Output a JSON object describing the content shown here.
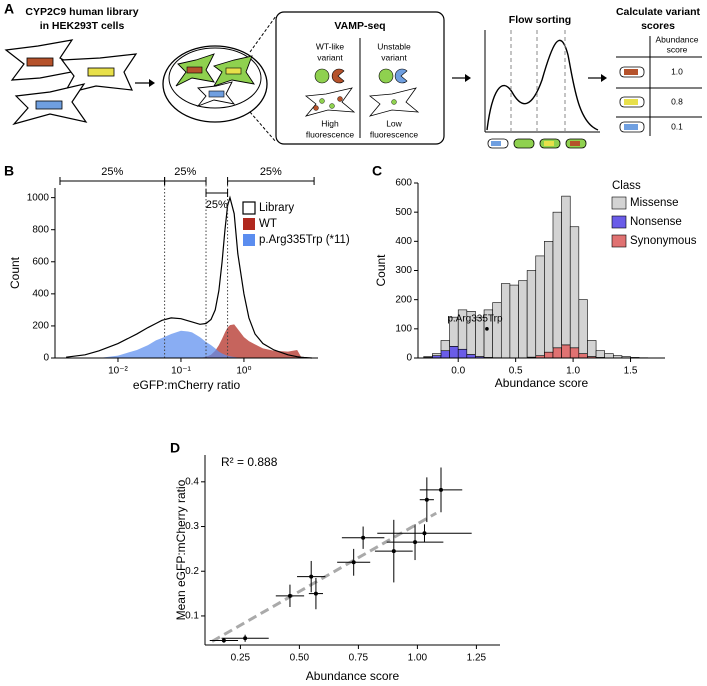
{
  "diagram": {
    "panel": "A",
    "library_title": [
      "CYP2C9 human library",
      "in HEK293T cells"
    ],
    "vamp_title": "VAMP-seq",
    "wt_label": [
      "WT-like",
      "variant"
    ],
    "unstable_label": [
      "Unstable",
      "variant"
    ],
    "high_label": [
      "High",
      "fluorescence"
    ],
    "low_label": [
      "Low",
      "fluorescence"
    ],
    "flow_title": "Flow sorting",
    "scores_title": [
      "Calculate variant",
      "scores"
    ],
    "score_header": [
      "Abundance",
      "score"
    ],
    "scores": [
      "1.0",
      "0.8",
      "0.1"
    ]
  },
  "chart_data": [
    {
      "panel": "B",
      "type": "area",
      "xlabel": "eGFP:mCherry ratio",
      "ylabel": "Count",
      "xscale": "log",
      "x": [
        0.0015,
        0.003,
        0.005,
        0.01,
        0.02,
        0.03,
        0.04,
        0.05,
        0.07,
        0.1,
        0.13,
        0.15,
        0.2,
        0.25,
        0.3,
        0.35,
        0.4,
        0.45,
        0.5,
        0.55,
        0.6,
        0.7,
        0.8,
        1,
        1.2,
        1.5,
        2,
        3,
        5,
        7,
        8,
        9,
        12
      ],
      "series": [
        {
          "name": "Library",
          "color": "#ffffff",
          "edgecolor": "#000000",
          "values": [
            5,
            20,
            45,
            90,
            150,
            190,
            215,
            235,
            250,
            245,
            232,
            225,
            210,
            215,
            240,
            300,
            420,
            600,
            800,
            950,
            1000,
            900,
            650,
            400,
            250,
            150,
            90,
            50,
            20,
            8,
            5,
            3,
            0
          ]
        },
        {
          "name": "WT",
          "color": "#b0281e",
          "values": [
            0,
            0,
            0,
            0,
            0,
            0,
            0,
            0,
            0,
            0,
            0,
            0,
            0,
            8,
            20,
            45,
            80,
            120,
            160,
            190,
            205,
            210,
            180,
            130,
            105,
            85,
            60,
            45,
            40,
            50,
            10,
            0,
            0
          ]
        },
        {
          "name": "p.Arg335Trp (*11)",
          "color": "#5b8def",
          "values": [
            0,
            0,
            0,
            15,
            50,
            80,
            110,
            125,
            150,
            170,
            165,
            160,
            130,
            100,
            80,
            60,
            40,
            28,
            20,
            14,
            10,
            6,
            3,
            0,
            0,
            0,
            0,
            0,
            0,
            0,
            0,
            0,
            0
          ]
        }
      ],
      "xlim": [
        0.001,
        15
      ],
      "ylim": [
        0,
        1060
      ],
      "xticks": [
        {
          "value": 0.01,
          "label": "10⁻²"
        },
        {
          "value": 0.1,
          "label": "10⁻¹"
        },
        {
          "value": 1,
          "label": "10⁰"
        }
      ],
      "yticks": [
        0,
        200,
        400,
        600,
        800,
        1000
      ],
      "quartile_lines": [
        0.055,
        0.25,
        0.55
      ],
      "brackets": [
        {
          "x": [
            0.0012,
            0.055
          ],
          "label": "25%"
        },
        {
          "x": [
            0.055,
            0.25
          ],
          "label": "25%"
        },
        {
          "x": [
            0.25,
            0.55
          ],
          "label": "25%"
        },
        {
          "x": [
            0.55,
            13
          ],
          "label": "25%"
        }
      ],
      "legend": "upper right"
    },
    {
      "panel": "C",
      "type": "histogram",
      "stacked": true,
      "xlabel": "Abundance score",
      "ylabel": "Count",
      "legend_title": "Class",
      "bins": [
        -0.3,
        -0.225,
        -0.15,
        -0.075,
        0,
        0.075,
        0.15,
        0.225,
        0.3,
        0.375,
        0.45,
        0.525,
        0.6,
        0.675,
        0.75,
        0.825,
        0.9,
        0.975,
        1.05,
        1.125,
        1.2,
        1.275,
        1.35,
        1.425,
        1.5,
        1.575,
        1.65
      ],
      "series": [
        {
          "name": "Missense",
          "color": "#d3d3d3",
          "values": [
            3,
            7,
            35,
            100,
            135,
            148,
            135,
            163,
            189,
            255,
            250,
            265,
            297,
            342,
            380,
            465,
            510,
            415,
            185,
            55,
            23,
            15,
            8,
            5,
            2,
            1
          ]
        },
        {
          "name": "Nonsense",
          "color": "#6a5ce8",
          "values": [
            2,
            8,
            25,
            40,
            30,
            12,
            5,
            2,
            1,
            0,
            0,
            0,
            0,
            0,
            0,
            0,
            0,
            0,
            0,
            0,
            0,
            0,
            0,
            0,
            0,
            0
          ]
        },
        {
          "name": "Synonymous",
          "color": "#e07272",
          "values": [
            0,
            0,
            0,
            0,
            0,
            0,
            0,
            0,
            0,
            0,
            0,
            0,
            3,
            8,
            20,
            35,
            45,
            35,
            15,
            5,
            2,
            0,
            0,
            0,
            0,
            0
          ]
        }
      ],
      "xlim": [
        -0.35,
        1.8
      ],
      "ylim": [
        0,
        600
      ],
      "xticks": [
        {
          "value": 0,
          "label": "0.0"
        },
        0.5,
        {
          "value": 1,
          "label": "1.0"
        },
        1.5
      ],
      "yticks": [
        0,
        100,
        200,
        300,
        400,
        500,
        600
      ],
      "annotation": {
        "x": 0.25,
        "y": 100,
        "label": "p.Arg335Trp"
      },
      "legend": "upper right"
    },
    {
      "panel": "D",
      "type": "scatter",
      "xlabel": "Abundance score",
      "ylabel": "Mean eGFP:mCherry ratio",
      "annotation": "R² = 0.888",
      "series": [
        {
          "color": "#000000",
          "x": [
            0.18,
            0.27,
            0.46,
            0.55,
            0.57,
            0.73,
            0.77,
            0.9,
            0.99,
            1.03,
            1.04,
            1.1
          ],
          "values": [
            0.045,
            0.05,
            0.145,
            0.188,
            0.15,
            0.22,
            0.275,
            0.245,
            0.265,
            0.285,
            0.36,
            0.382
          ],
          "xerr": [
            0.06,
            0.1,
            0.06,
            0.06,
            0.03,
            0.07,
            0.09,
            0.08,
            0.12,
            0.2,
            0.03,
            0.09
          ],
          "yerr": [
            0.005,
            0.008,
            0.025,
            0.035,
            0.035,
            0.03,
            0.025,
            0.07,
            0.04,
            0.02,
            0.05,
            0.05
          ]
        }
      ],
      "fit_line": {
        "x": [
          0.13,
          1.08
        ],
        "values": [
          0.043,
          0.33
        ],
        "color": "#aaaaaa"
      },
      "xlim": [
        0.1,
        1.35
      ],
      "ylim": [
        0.035,
        0.46
      ],
      "xticks": [
        0.25,
        {
          "value": 0.5,
          "label": "0.50"
        },
        0.75,
        {
          "value": 1,
          "label": "1.00"
        },
        1.25
      ],
      "yticks": [
        0.1,
        0.2,
        0.3,
        0.4
      ]
    }
  ]
}
